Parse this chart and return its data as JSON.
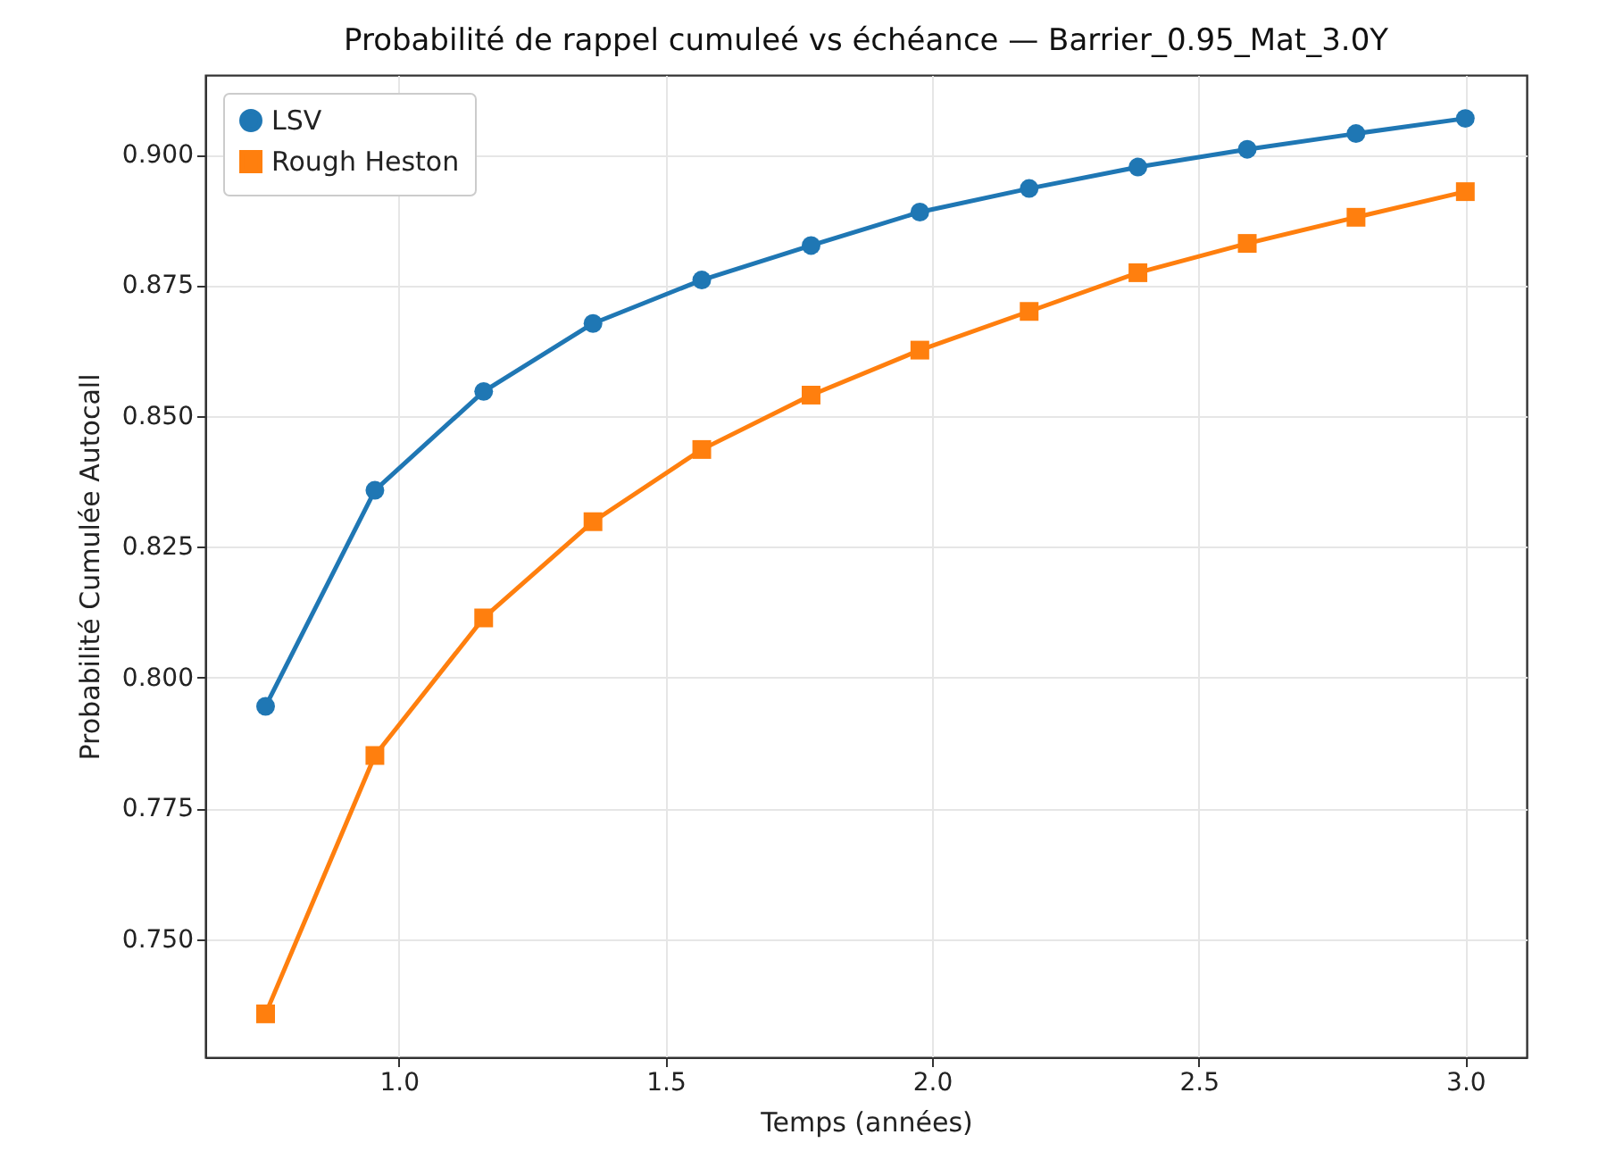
{
  "chart_data": {
    "type": "line",
    "title": "Probabilité de rappel cumuleé vs échéance — Barrier_0.95_Mat_3.0Y",
    "xlabel": "Temps (années)",
    "ylabel": "Probabilité Cumulée Autocall",
    "x": [
      0.75,
      0.955,
      1.159,
      1.364,
      1.568,
      1.773,
      1.977,
      2.182,
      2.386,
      2.591,
      2.795,
      3.0
    ],
    "series": [
      {
        "name": "LSV",
        "color": "#1f77b4",
        "marker": "circle",
        "values": [
          0.7945,
          0.8358,
          0.8547,
          0.8677,
          0.876,
          0.8826,
          0.889,
          0.8935,
          0.8976,
          0.901,
          0.904,
          0.9069
        ]
      },
      {
        "name": "Rough Heston",
        "color": "#ff7f0e",
        "marker": "square",
        "values": [
          0.7357,
          0.7851,
          0.8114,
          0.8298,
          0.8436,
          0.854,
          0.8626,
          0.87,
          0.8774,
          0.883,
          0.888,
          0.8929
        ]
      }
    ],
    "xlim": [
      0.637,
      3.115
    ],
    "ylim": [
      0.7274,
      0.9152
    ],
    "xticks": [
      {
        "value": 1,
        "label": "1.0"
      },
      1.5,
      {
        "value": 2,
        "label": "2.0"
      },
      2.5,
      {
        "value": 3,
        "label": "3.0"
      }
    ],
    "yticks": [
      {
        "value": 0.75,
        "label": "0.750"
      },
      0.775,
      {
        "value": 0.8,
        "label": "0.800"
      },
      0.825,
      {
        "value": 0.85,
        "label": "0.850"
      },
      0.875,
      {
        "value": 0.9,
        "label": "0.900"
      }
    ],
    "grid": true,
    "legend": "top left",
    "line_style": "solid"
  }
}
